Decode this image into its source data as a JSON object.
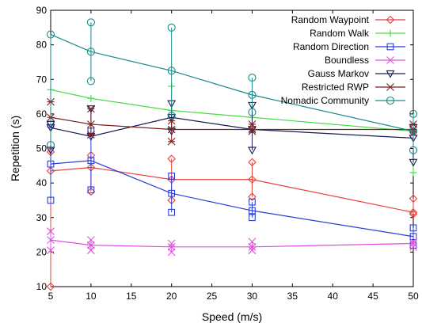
{
  "chart_data": {
    "type": "line",
    "xlabel": "Speed (m/s)",
    "ylabel": "Repetition (s)",
    "xlim": [
      5,
      50
    ],
    "ylim": [
      10,
      90
    ],
    "xticks": [
      5,
      10,
      15,
      20,
      25,
      30,
      35,
      40,
      45,
      50
    ],
    "yticks": [
      10,
      20,
      30,
      40,
      50,
      60,
      70,
      80,
      90
    ],
    "x": [
      5,
      10,
      20,
      30,
      50
    ],
    "grid": false,
    "legend_position": "top-right",
    "series": [
      {
        "name": "Random Waypoint",
        "color": "#e8423a",
        "marker": "diamond",
        "values": [
          43.5,
          44.5,
          41,
          41,
          31.5
        ],
        "error_low": [
          10,
          37.5,
          35,
          36,
          31
        ],
        "error_high": [
          49,
          48,
          47,
          46,
          35.5
        ]
      },
      {
        "name": "Random Walk",
        "color": "#44dd44",
        "marker": "plus",
        "values": [
          67,
          64.5,
          61,
          59,
          55
        ],
        "error_low": [
          67,
          64.5,
          56,
          59,
          43
        ],
        "error_high": [
          67,
          64.5,
          68,
          59,
          55
        ]
      },
      {
        "name": "Random Direction",
        "color": "#2a3fd6",
        "marker": "square",
        "values": [
          45.5,
          46.5,
          37,
          32,
          24.5
        ],
        "error_low": [
          35,
          38,
          31.5,
          30,
          22
        ],
        "error_high": [
          57,
          55,
          42,
          34.5,
          27
        ]
      },
      {
        "name": "Boundless",
        "color": "#e050e0",
        "marker": "x",
        "values": [
          23.5,
          22,
          21.5,
          21.5,
          22.5
        ],
        "error_low": [
          20.5,
          20.5,
          20,
          20.5,
          21.5
        ],
        "error_high": [
          26,
          23.5,
          22.5,
          23,
          23
        ]
      },
      {
        "name": "Gauss Markov",
        "color": "#1a1a5a",
        "marker": "triangle-down",
        "values": [
          56,
          53.5,
          59,
          55.5,
          53
        ],
        "error_low": [
          49.5,
          53.5,
          55,
          49.5,
          46
        ],
        "error_high": [
          57,
          61.5,
          63,
          62.5,
          56
        ]
      },
      {
        "name": "Restricted RWP",
        "color": "#7a2020",
        "marker": "asterisk",
        "values": [
          59,
          57,
          55.5,
          55.5,
          55.5
        ],
        "error_low": [
          59,
          54,
          52,
          55,
          54.5
        ],
        "error_high": [
          63.5,
          61.5,
          58,
          57,
          57
        ]
      },
      {
        "name": "Nomadic Community",
        "color": "#1a8a8a",
        "marker": "circle",
        "values": [
          83,
          78,
          72.5,
          65.5,
          55
        ],
        "error_low": [
          51,
          69.5,
          59.5,
          60.5,
          49.5
        ],
        "error_high": [
          83,
          86.5,
          85,
          70.5,
          60
        ]
      }
    ]
  }
}
